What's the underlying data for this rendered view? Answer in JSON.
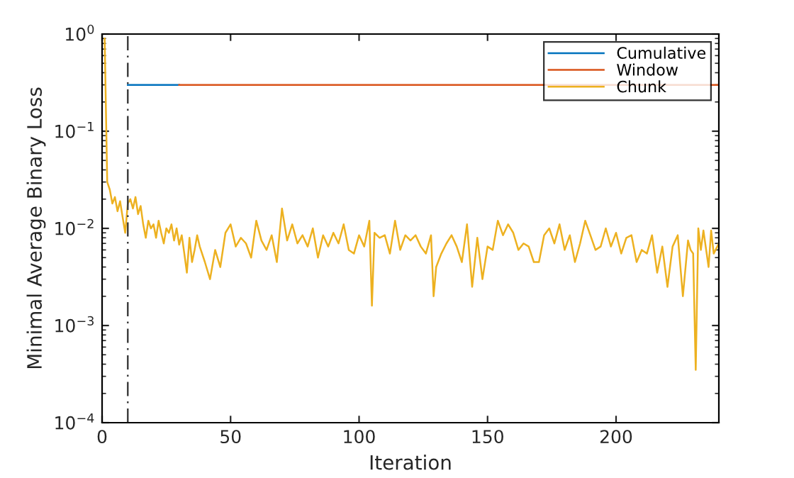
{
  "chart_data": {
    "type": "line",
    "xlabel": "Iteration",
    "ylabel": "Minimal Average Binary Loss",
    "xlim": [
      0,
      240
    ],
    "xticks": [
      0,
      50,
      100,
      150,
      200
    ],
    "ylim": [
      0.0001,
      1
    ],
    "yticks": [
      {
        "value": 0.0001,
        "label": "10$^{−4}$"
      },
      {
        "value": 0.001,
        "label": "10$^{−3}$"
      },
      {
        "value": 0.01,
        "label": "10$^{−2}$"
      },
      {
        "value": 0.1,
        "label": "10$^{−1}$"
      },
      {
        "value": 1,
        "label": "10$^{0}$"
      }
    ],
    "log": "y",
    "grid": false,
    "legend": "top right",
    "line_style": "solid",
    "marker": "none",
    "ref_lines": [
      {
        "axis": "x",
        "value": 10,
        "color": "#404040",
        "line_style": "dashed"
      }
    ],
    "series": [
      {
        "name": "Cumulative",
        "color": "#0072bd",
        "x": [
          10,
          30
        ],
        "values": [
          0.3,
          0.3
        ]
      },
      {
        "name": "Window",
        "color": "#d95319",
        "x": [
          30,
          240
        ],
        "values": [
          0.3,
          0.3
        ]
      },
      {
        "name": "Chunk",
        "color": "#edb120",
        "x": [
          1,
          2,
          3,
          4,
          5,
          6,
          7,
          8,
          9,
          10,
          11,
          12,
          13,
          14,
          15,
          16,
          17,
          18,
          19,
          20,
          21,
          22,
          23,
          24,
          25,
          26,
          27,
          28,
          29,
          30,
          31,
          32,
          33,
          34,
          35,
          36,
          37,
          38,
          40,
          42,
          44,
          46,
          48,
          50,
          52,
          54,
          56,
          58,
          60,
          62,
          64,
          66,
          68,
          70,
          72,
          74,
          76,
          78,
          80,
          82,
          84,
          86,
          88,
          90,
          92,
          94,
          96,
          98,
          100,
          102,
          104,
          105,
          106,
          108,
          110,
          112,
          114,
          116,
          118,
          120,
          122,
          124,
          126,
          128,
          129,
          130,
          132,
          134,
          136,
          138,
          140,
          142,
          144,
          146,
          148,
          150,
          152,
          154,
          156,
          158,
          160,
          162,
          164,
          166,
          168,
          170,
          172,
          174,
          176,
          178,
          180,
          182,
          184,
          186,
          188,
          190,
          192,
          194,
          196,
          198,
          200,
          202,
          204,
          206,
          208,
          210,
          212,
          214,
          216,
          218,
          220,
          222,
          224,
          226,
          228,
          229,
          230,
          231,
          232,
          233,
          234,
          236,
          237,
          238,
          240
        ],
        "values": [
          0.9,
          0.03,
          0.025,
          0.018,
          0.021,
          0.015,
          0.019,
          0.013,
          0.009,
          0.018,
          0.02,
          0.016,
          0.021,
          0.014,
          0.017,
          0.011,
          0.008,
          0.012,
          0.01,
          0.011,
          0.008,
          0.012,
          0.009,
          0.007,
          0.01,
          0.009,
          0.011,
          0.0075,
          0.01,
          0.0068,
          0.0085,
          0.0055,
          0.0035,
          0.008,
          0.0045,
          0.006,
          0.0085,
          0.0065,
          0.0045,
          0.003,
          0.006,
          0.004,
          0.009,
          0.011,
          0.0065,
          0.008,
          0.007,
          0.005,
          0.012,
          0.0075,
          0.006,
          0.0085,
          0.0045,
          0.016,
          0.0075,
          0.011,
          0.007,
          0.0085,
          0.0065,
          0.01,
          0.005,
          0.0085,
          0.0065,
          0.009,
          0.007,
          0.011,
          0.006,
          0.0055,
          0.0085,
          0.0065,
          0.012,
          0.0016,
          0.009,
          0.008,
          0.0085,
          0.0055,
          0.012,
          0.006,
          0.0085,
          0.0075,
          0.0085,
          0.0065,
          0.0055,
          0.0085,
          0.002,
          0.004,
          0.0055,
          0.007,
          0.0085,
          0.0065,
          0.0045,
          0.011,
          0.0025,
          0.008,
          0.003,
          0.0065,
          0.006,
          0.012,
          0.0085,
          0.011,
          0.009,
          0.006,
          0.007,
          0.0065,
          0.0045,
          0.0045,
          0.0085,
          0.01,
          0.007,
          0.011,
          0.006,
          0.0085,
          0.0045,
          0.007,
          0.012,
          0.0085,
          0.006,
          0.0065,
          0.01,
          0.0065,
          0.009,
          0.0055,
          0.008,
          0.0085,
          0.0045,
          0.006,
          0.0055,
          0.0085,
          0.0035,
          0.0065,
          0.0025,
          0.0065,
          0.0085,
          0.002,
          0.0075,
          0.006,
          0.0055,
          0.00035,
          0.01,
          0.006,
          0.0095,
          0.004,
          0.0095,
          0.0055,
          0.007
        ]
      }
    ]
  }
}
